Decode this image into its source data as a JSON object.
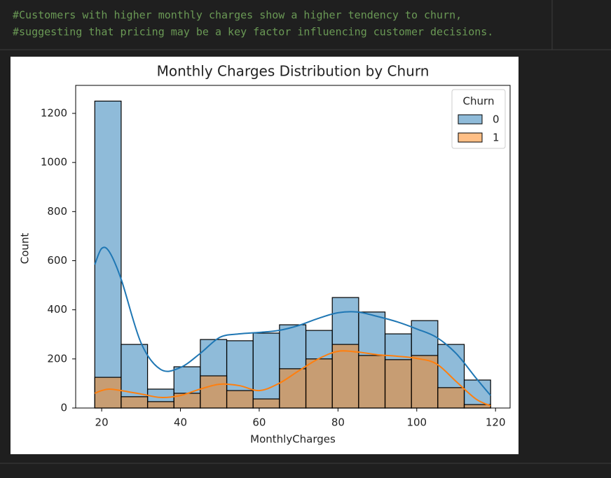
{
  "cell_comment": [
    "#Customers with higher monthly charges show a higher tendency to churn,",
    "#suggesting that pricing may be a key factor influencing customer decisions."
  ],
  "chart_data": {
    "type": "histogram",
    "title": "Monthly Charges Distribution by Churn",
    "x_label": "MonthlyCharges",
    "y_label": "Count",
    "legend_title": "Churn",
    "legend_position": "upper right",
    "bins": [
      18.25,
      24.95,
      31.65,
      38.35,
      45.05,
      51.75,
      58.45,
      65.15,
      71.85,
      78.55,
      85.25,
      91.95,
      98.65,
      105.35,
      112.05,
      118.75
    ],
    "kde_x": [
      18.25,
      20,
      22,
      25,
      30,
      35,
      40,
      45,
      50,
      55,
      60,
      65,
      70,
      75,
      80,
      85,
      90,
      95,
      100,
      105,
      110,
      115,
      118.75
    ],
    "series": [
      {
        "name": "0",
        "color": "#1f77b4",
        "values": [
          1250,
          259,
          77,
          168,
          279,
          274,
          305,
          339,
          316,
          450,
          391,
          302,
          356,
          259,
          114
        ],
        "kde": [
          584,
          650,
          635,
          522,
          265,
          157,
          165,
          222,
          288,
          302,
          308,
          316,
          336,
          365,
          388,
          391,
          373,
          351,
          322,
          288,
          222,
          123,
          51
        ]
      },
      {
        "name": "1",
        "color": "#ff7f0e",
        "values": [
          125,
          46,
          26,
          60,
          131,
          71,
          37,
          160,
          200,
          259,
          214,
          197,
          214,
          83,
          14
        ],
        "kde": [
          60,
          71,
          77,
          71,
          57,
          43,
          51,
          77,
          97,
          91,
          71,
          100,
          151,
          200,
          231,
          228,
          217,
          211,
          202,
          180,
          108,
          37,
          9
        ]
      }
    ],
    "xlim": [
      13.4,
      123.7
    ],
    "ylim": [
      0,
      1314
    ],
    "xticks": [
      20,
      40,
      60,
      80,
      100,
      120
    ],
    "yticks": [
      0,
      200,
      400,
      600,
      800,
      1000,
      1200
    ],
    "fill_opacity": 0.5
  }
}
